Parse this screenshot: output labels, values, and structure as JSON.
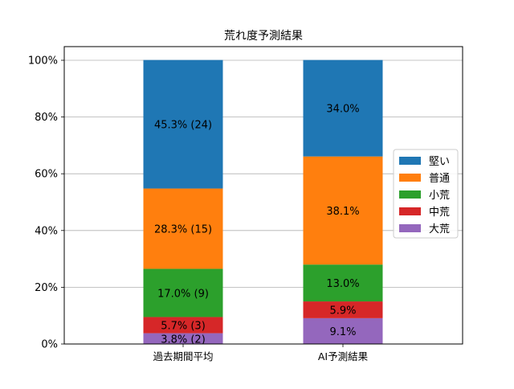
{
  "chart_data": {
    "type": "bar",
    "stacked": true,
    "title": "荒れ度予測結果",
    "xlabel": "",
    "ylabel": "",
    "ylim": [
      0,
      100
    ],
    "y_tick_labels": [
      "0%",
      "20%",
      "40%",
      "60%",
      "80%",
      "100%"
    ],
    "y_ticks": [
      0,
      20,
      40,
      60,
      80,
      100
    ],
    "grid": "y",
    "legend_position": "right",
    "categories": [
      "過去期間平均",
      "AI予測結果"
    ],
    "series": [
      {
        "name": "大荒",
        "color": "#9467bd",
        "values": [
          3.8,
          9.1
        ],
        "labels": [
          "3.8% (2)",
          "9.1%"
        ]
      },
      {
        "name": "中荒",
        "color": "#d62728",
        "values": [
          5.7,
          5.9
        ],
        "labels": [
          "5.7% (3)",
          "5.9%"
        ]
      },
      {
        "name": "小荒",
        "color": "#2ca02c",
        "values": [
          17.0,
          13.0
        ],
        "labels": [
          "17.0% (9)",
          "13.0%"
        ]
      },
      {
        "name": "普通",
        "color": "#ff7f0e",
        "values": [
          28.3,
          38.1
        ],
        "labels": [
          "28.3% (15)",
          "38.1%"
        ]
      },
      {
        "name": "堅い",
        "color": "#1f77b4",
        "values": [
          45.3,
          34.0
        ],
        "labels": [
          "45.3% (24)",
          "34.0%"
        ]
      }
    ],
    "legend_order": [
      "堅い",
      "普通",
      "小荒",
      "中荒",
      "大荒"
    ]
  }
}
